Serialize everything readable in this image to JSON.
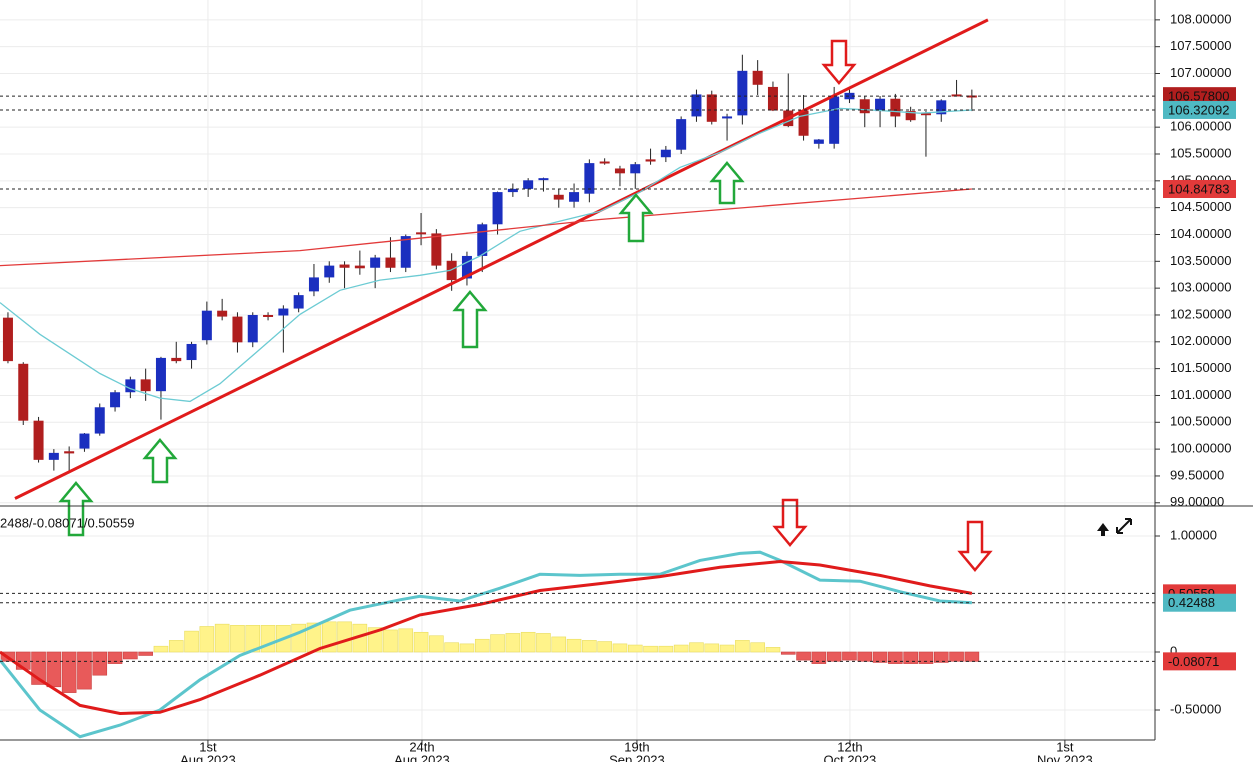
{
  "chart_data": [
    {
      "type": "candlestick",
      "up_color": "#1b2fbf",
      "down_color": "#b01e1e",
      "open": [
        102.45,
        101.59,
        100.53,
        99.8,
        99.96,
        100.01,
        100.29,
        100.78,
        101.06,
        101.3,
        101.08,
        101.7,
        101.66,
        102.03,
        102.58,
        102.47,
        101.99,
        102.5,
        102.49,
        102.62,
        102.94,
        103.2,
        103.44,
        103.42,
        103.38,
        103.57,
        103.38,
        104.04,
        104.02,
        103.51,
        103.18,
        103.6,
        104.19,
        104.79,
        104.85,
        105.03,
        104.74,
        104.61,
        104.76,
        105.36,
        105.23,
        105.14,
        105.4,
        105.44,
        105.58,
        106.2,
        106.61,
        106.17,
        106.22,
        107.05,
        106.75,
        106.31,
        106.31,
        105.69,
        105.69,
        106.52,
        106.52,
        106.3,
        106.53,
        106.3,
        106.26,
        106.24,
        106.61,
        106.59
      ],
      "high": [
        102.55,
        101.62,
        100.6,
        100.0,
        100.05,
        100.3,
        100.85,
        101.1,
        101.35,
        101.5,
        101.72,
        102.0,
        102.0,
        102.75,
        102.8,
        102.55,
        102.55,
        102.55,
        102.68,
        102.92,
        103.45,
        103.5,
        103.5,
        103.7,
        103.62,
        103.95,
        104.0,
        104.4,
        104.1,
        103.65,
        103.68,
        104.22,
        104.8,
        104.95,
        105.05,
        105.06,
        104.85,
        104.95,
        105.4,
        105.42,
        105.28,
        105.35,
        105.6,
        105.65,
        106.2,
        106.7,
        106.68,
        106.25,
        107.35,
        107.25,
        106.85,
        107.0,
        106.6,
        105.78,
        106.75,
        106.7,
        106.58,
        106.58,
        106.62,
        106.38,
        106.3,
        106.52,
        106.88,
        106.7
      ],
      "low": [
        101.6,
        100.45,
        99.75,
        99.6,
        99.55,
        99.95,
        100.25,
        100.7,
        100.95,
        100.9,
        100.55,
        101.6,
        101.5,
        101.95,
        102.4,
        101.8,
        101.9,
        102.4,
        101.8,
        102.55,
        102.85,
        103.1,
        103.0,
        103.25,
        103.0,
        103.3,
        103.3,
        103.8,
        103.35,
        102.95,
        103.05,
        103.3,
        104.0,
        104.7,
        104.7,
        104.8,
        104.5,
        104.5,
        104.6,
        105.3,
        104.9,
        104.85,
        105.3,
        105.35,
        105.5,
        106.1,
        106.05,
        105.75,
        106.05,
        106.6,
        106.3,
        106.0,
        105.75,
        105.6,
        105.6,
        106.45,
        106.0,
        106.0,
        106.0,
        106.1,
        105.45,
        106.1,
        106.58,
        106.3
      ],
      "close": [
        101.64,
        100.53,
        99.8,
        99.93,
        99.92,
        100.29,
        100.78,
        101.06,
        101.3,
        101.08,
        101.7,
        101.64,
        101.96,
        102.58,
        102.47,
        101.99,
        102.5,
        102.47,
        102.62,
        102.87,
        103.2,
        103.42,
        103.38,
        103.37,
        103.57,
        103.38,
        103.97,
        104.02,
        103.42,
        103.15,
        103.6,
        104.19,
        104.79,
        104.85,
        105.01,
        105.05,
        104.65,
        104.79,
        105.33,
        105.33,
        105.14,
        105.31,
        105.36,
        105.58,
        106.15,
        106.61,
        106.1,
        106.2,
        107.05,
        106.79,
        106.31,
        106.02,
        105.84,
        105.77,
        106.57,
        106.64,
        106.26,
        106.53,
        106.2,
        106.13,
        106.24,
        106.5,
        106.59,
        106.578
      ],
      "lines": [
        {
          "color": "#6ccbd3",
          "x": [
            -0.52,
            2.09,
            6.01,
            7.97,
            9.93,
            11.9,
            13.86,
            16.47,
            19.08,
            21.7,
            24.31,
            26.93,
            28.89,
            30.85,
            33.46,
            36.08,
            38.69,
            41.31,
            43.92,
            46.54,
            49.15,
            51.76,
            54.38,
            56.99,
            59.61,
            63.0
          ],
          "values": [
            102.73,
            102.14,
            101.41,
            101.13,
            100.95,
            100.89,
            101.22,
            101.86,
            102.51,
            102.96,
            103.15,
            103.24,
            103.33,
            103.6,
            104.06,
            104.25,
            104.43,
            104.79,
            105.25,
            105.53,
            105.89,
            106.2,
            106.35,
            106.31,
            106.26,
            106.32092
          ]
        },
        {
          "color": "#e23a3a",
          "x": [
            -0.52,
            19.08,
            38.69,
            63.0
          ],
          "values": [
            103.42,
            103.7,
            104.28,
            104.84783
          ]
        }
      ],
      "trend_line": {
        "color": "#e01b1b",
        "x": [
          0.46,
          64.05
        ],
        "values": [
          99.08,
          108.0
        ]
      },
      "markers": {
        "values": [
          106.578,
          106.32092,
          104.84783
        ],
        "value_labels": [
          "106.57800",
          "106.32092",
          "104.84783"
        ],
        "colors": [
          "#b01e1e",
          "#4fb9c3",
          "#e23a3a"
        ]
      },
      "xlim": [
        -0.52,
        74.97
      ],
      "ylim": [
        98.94,
        108.37
      ],
      "grid": true,
      "yticks": [
        {
          "value": 108,
          "label": "108.00000"
        },
        {
          "value": 107.5,
          "label": "107.50000"
        },
        {
          "value": 107,
          "label": "107.00000"
        },
        {
          "value": 106,
          "label": "106.00000"
        },
        {
          "value": 105.5,
          "label": "105.50000"
        },
        {
          "value": 105,
          "label": "105.00000"
        },
        {
          "value": 104.5,
          "label": "104.50000"
        },
        {
          "value": 104,
          "label": "104.00000"
        },
        {
          "value": 103.5,
          "label": "103.50000"
        },
        {
          "value": 103,
          "label": "103.00000"
        },
        {
          "value": 102.5,
          "label": "102.50000"
        },
        {
          "value": 102,
          "label": "102.00000"
        },
        {
          "value": 101.5,
          "label": "101.50000"
        },
        {
          "value": 101,
          "label": "101.00000"
        },
        {
          "value": 100.5,
          "label": "100.50000"
        },
        {
          "value": 100,
          "label": "100.00000"
        },
        {
          "value": 99.5,
          "label": "99.50000"
        },
        {
          "value": 99,
          "label": "99.00000"
        }
      ]
    },
    {
      "type": "macd",
      "indicator_label": "2488/-0.08071/0.50559",
      "histogram": {
        "pos_color": "#fff38a",
        "neg_color": "#e85a5a",
        "values": [
          -0.08,
          -0.15,
          -0.28,
          -0.3,
          -0.35,
          -0.32,
          -0.2,
          -0.1,
          -0.06,
          -0.03,
          0.05,
          0.1,
          0.18,
          0.22,
          0.24,
          0.23,
          0.23,
          0.23,
          0.23,
          0.24,
          0.25,
          0.26,
          0.26,
          0.24,
          0.21,
          0.19,
          0.2,
          0.17,
          0.14,
          0.08,
          0.07,
          0.11,
          0.15,
          0.16,
          0.17,
          0.16,
          0.13,
          0.11,
          0.1,
          0.09,
          0.07,
          0.06,
          0.05,
          0.05,
          0.06,
          0.08,
          0.07,
          0.06,
          0.1,
          0.08,
          0.04,
          -0.02,
          -0.07,
          -0.1,
          -0.08,
          -0.07,
          -0.08,
          -0.09,
          -0.1,
          -0.1,
          -0.1,
          -0.09,
          -0.08,
          -0.08071
        ]
      },
      "lines": [
        {
          "color": "#5cc5cc",
          "x": [
            -0.52,
            2.09,
            4.71,
            7.32,
            9.93,
            12.55,
            15.16,
            19.08,
            22.35,
            25.62,
            26.93,
            29.54,
            32.16,
            34.77,
            37.39,
            40.0,
            42.61,
            45.23,
            47.84,
            49.15,
            50.46,
            53.07,
            55.69,
            58.3,
            60.92,
            63.0
          ],
          "values": [
            -0.07,
            -0.5,
            -0.73,
            -0.63,
            -0.5,
            -0.24,
            -0.03,
            0.17,
            0.36,
            0.45,
            0.48,
            0.44,
            0.55,
            0.67,
            0.66,
            0.67,
            0.67,
            0.79,
            0.85,
            0.86,
            0.79,
            0.62,
            0.61,
            0.52,
            0.44,
            0.42488
          ]
        },
        {
          "color": "#e01b1b",
          "x": [
            -0.52,
            2.09,
            4.71,
            7.32,
            9.93,
            12.55,
            16.47,
            20.39,
            24.31,
            26.93,
            30.85,
            34.77,
            38.69,
            42.61,
            46.54,
            50.46,
            53.07,
            56.99,
            60.26,
            63.0
          ],
          "values": [
            0.0,
            -0.24,
            -0.46,
            -0.53,
            -0.52,
            -0.41,
            -0.2,
            0.03,
            0.19,
            0.32,
            0.41,
            0.53,
            0.59,
            0.65,
            0.73,
            0.78,
            0.75,
            0.66,
            0.57,
            0.50559
          ]
        }
      ],
      "markers": {
        "values": [
          0.50559,
          0.42488,
          -0.08071
        ],
        "value_labels": [
          "0.50559",
          "0.42488",
          "-0.08071"
        ],
        "colors": [
          "#e23a3a",
          "#4fb9c3",
          "#e23a3a"
        ]
      },
      "xlim": [
        -0.52,
        74.97
      ],
      "ylim": [
        -0.7586,
        1.2586
      ],
      "grid": true,
      "yticks": [
        {
          "value": 1,
          "label": "1.00000"
        },
        0,
        {
          "value": -0.5,
          "label": "-0.50000"
        }
      ],
      "xticks": [
        {
          "value": 13.07,
          "label": "1st"
        },
        {
          "value": 27.06,
          "label": "24th"
        },
        {
          "value": 41.11,
          "label": "19th"
        },
        {
          "value": 55.03,
          "label": "12th"
        },
        {
          "value": 69.08,
          "label": "1st"
        }
      ],
      "xtick_sublabels": [
        "Aug 2023",
        "Aug 2023",
        "Sep 2023",
        "Oct 2023",
        "Nov 2023"
      ]
    }
  ]
}
